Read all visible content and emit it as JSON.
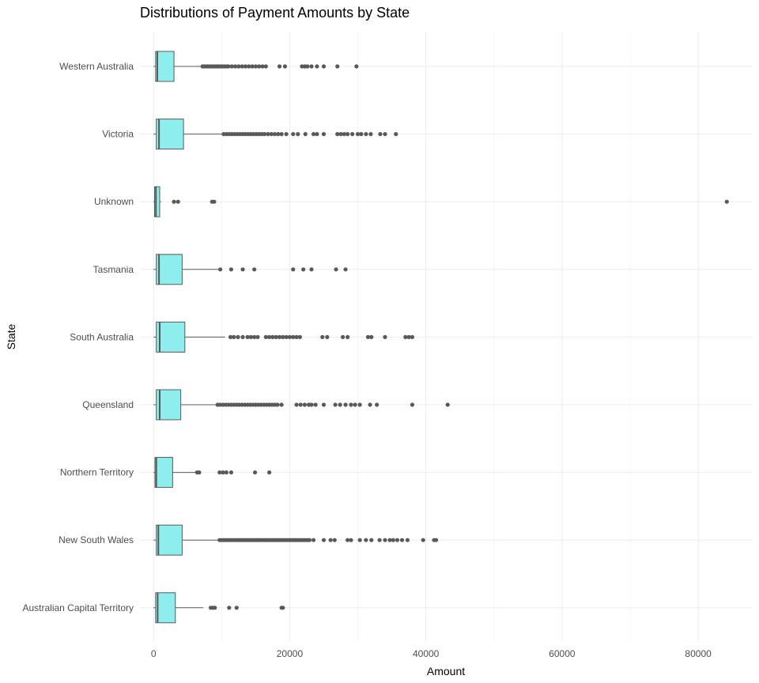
{
  "chart_data": {
    "type": "boxplot",
    "title": "Distributions of Payment Amounts by State",
    "xlabel": "Amount",
    "ylabel": "State",
    "xlim": [
      -2000,
      88000
    ],
    "x_ticks": [
      0,
      20000,
      40000,
      60000,
      80000
    ],
    "x_tick_labels": [
      "0",
      "20000",
      "40000",
      "60000",
      "80000"
    ],
    "grid": true,
    "orientation": "horizontal",
    "colors": {
      "box_fill": "#8eeeee",
      "box_stroke": "#595959",
      "outlier": "#595959",
      "grid_major": "#ebebeb",
      "grid_minor": "#f5f5f5"
    },
    "categories": [
      "Western Australia",
      "Victoria",
      "Unknown",
      "Tasmania",
      "South Australia",
      "Queensland",
      "Northern Territory",
      "New South Wales",
      "Australian Capital Territory"
    ],
    "boxes": [
      {
        "state": "Western Australia",
        "lower_whisker": 0,
        "q1": 300,
        "median": 550,
        "q3": 3000,
        "upper_whisker": 7000,
        "outliers": [
          7200,
          7500,
          7800,
          8000,
          8300,
          8600,
          8900,
          9200,
          9500,
          9800,
          10100,
          10400,
          10700,
          11000,
          11500,
          12000,
          12500,
          13000,
          13500,
          14000,
          14500,
          15000,
          15500,
          16000,
          16500,
          18500,
          19300,
          21800,
          22200,
          22600,
          23200,
          24000,
          25000,
          27000,
          29800
        ]
      },
      {
        "state": "Victoria",
        "lower_whisker": 0,
        "q1": 400,
        "median": 800,
        "q3": 4400,
        "upper_whisker": 10200,
        "outliers": [
          10300,
          10700,
          11100,
          11500,
          11900,
          12300,
          12700,
          13100,
          13500,
          13900,
          14300,
          14700,
          15100,
          15500,
          15900,
          16300,
          16800,
          17300,
          17800,
          18300,
          18800,
          19500,
          20500,
          21200,
          22300,
          23500,
          24000,
          25000,
          27000,
          27500,
          28000,
          28500,
          29200,
          30000,
          30500,
          31200,
          31900,
          33300,
          34000,
          35600
        ]
      },
      {
        "state": "Unknown",
        "lower_whisker": 0,
        "q1": 150,
        "median": 350,
        "q3": 900,
        "upper_whisker": 1100,
        "outliers": [
          3000,
          3600,
          8600,
          8900,
          84200
        ]
      },
      {
        "state": "Tasmania",
        "lower_whisker": 0,
        "q1": 400,
        "median": 800,
        "q3": 4200,
        "upper_whisker": 9500,
        "outliers": [
          9800,
          11400,
          13100,
          14800,
          20500,
          22000,
          23200,
          26800,
          28200
        ]
      },
      {
        "state": "South Australia",
        "lower_whisker": 0,
        "q1": 400,
        "median": 900,
        "q3": 4600,
        "upper_whisker": 10500,
        "outliers": [
          11300,
          11800,
          12400,
          13100,
          13800,
          14300,
          14800,
          15300,
          16500,
          17000,
          17500,
          18000,
          18500,
          19000,
          19500,
          20000,
          20500,
          21000,
          21500,
          24800,
          25500,
          27800,
          28500,
          31500,
          32000,
          34000,
          37000,
          37500,
          38000
        ]
      },
      {
        "state": "Queensland",
        "lower_whisker": 0,
        "q1": 400,
        "median": 900,
        "q3": 4000,
        "upper_whisker": 9300,
        "outliers": [
          9400,
          9800,
          10200,
          10600,
          11000,
          11400,
          11800,
          12200,
          12600,
          13000,
          13400,
          13800,
          14200,
          14600,
          15000,
          15400,
          15800,
          16200,
          16600,
          17000,
          17400,
          17800,
          18200,
          18800,
          21000,
          21600,
          22200,
          22800,
          23200,
          23800,
          25000,
          26700,
          27400,
          28200,
          29000,
          29600,
          30300,
          31800,
          32800,
          38000,
          43200
        ]
      },
      {
        "state": "Northern Territory",
        "lower_whisker": 0,
        "q1": 200,
        "median": 400,
        "q3": 2800,
        "upper_whisker": 6300,
        "outliers": [
          6400,
          6700,
          9700,
          10200,
          10700,
          11400,
          14900,
          17000
        ]
      },
      {
        "state": "New South Wales",
        "lower_whisker": 0,
        "q1": 400,
        "median": 700,
        "q3": 4200,
        "upper_whisker": 9600,
        "outliers": [
          9700,
          10000,
          10300,
          10600,
          10900,
          11200,
          11500,
          11800,
          12100,
          12400,
          12700,
          13000,
          13300,
          13600,
          13900,
          14200,
          14500,
          14800,
          15100,
          15400,
          15700,
          16000,
          16300,
          16600,
          16900,
          17200,
          17500,
          17800,
          18100,
          18400,
          18700,
          19000,
          19300,
          19600,
          19900,
          20200,
          20500,
          20800,
          21100,
          21400,
          21700,
          22000,
          22300,
          22600,
          22900,
          23500,
          25000,
          26000,
          26600,
          28500,
          29000,
          30300,
          31200,
          32000,
          33200,
          34000,
          34700,
          35200,
          35800,
          36500,
          37300,
          39600,
          41200,
          41500
        ]
      },
      {
        "state": "Australian Capital Territory",
        "lower_whisker": 0,
        "q1": 300,
        "median": 600,
        "q3": 3200,
        "upper_whisker": 7300,
        "outliers": [
          8400,
          8700,
          9000,
          11100,
          12200,
          18800,
          19000
        ]
      }
    ]
  }
}
